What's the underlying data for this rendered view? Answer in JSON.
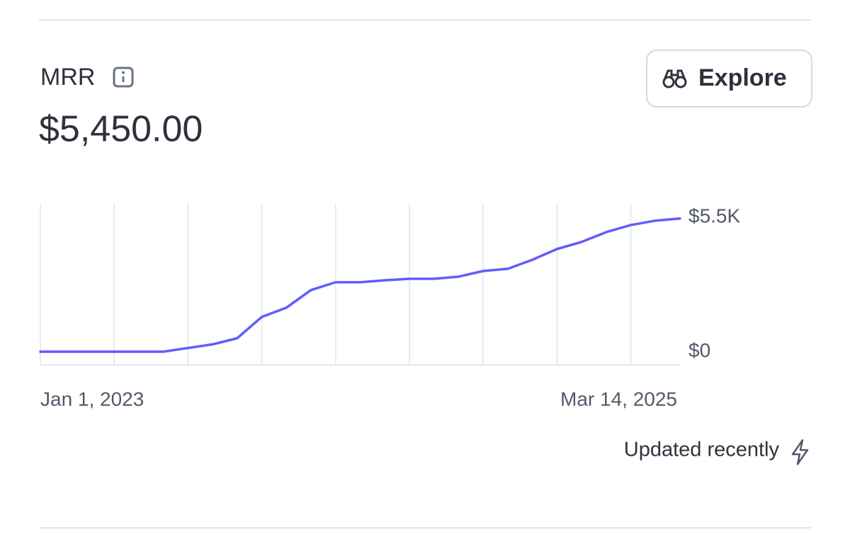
{
  "header": {
    "metric": "MRR",
    "amount": "$5,450.00",
    "button": "Explore"
  },
  "chart_data": {
    "type": "line",
    "categories": [
      "Jan 1, 2023",
      null,
      null,
      null,
      null,
      null,
      null,
      null,
      null,
      null,
      null,
      null,
      null,
      null,
      null,
      null,
      null,
      null,
      null,
      null,
      null,
      null,
      null,
      null,
      null,
      null,
      "Mar 14, 2025"
    ],
    "values": [
      0,
      0,
      0,
      0,
      0,
      0,
      150,
      300,
      550,
      1420,
      1800,
      2520,
      2840,
      2840,
      2920,
      2980,
      2980,
      3070,
      3300,
      3390,
      3760,
      4200,
      4490,
      4890,
      5180,
      5360,
      5450
    ],
    "color": "#635bff",
    "ylim": [
      -550,
      6050
    ],
    "yticks": [
      {
        "value": 0,
        "label": "$0"
      },
      {
        "value": 5500,
        "label": "$5.5K"
      }
    ],
    "grid": true
  },
  "footer": {
    "status": "Updated recently"
  }
}
